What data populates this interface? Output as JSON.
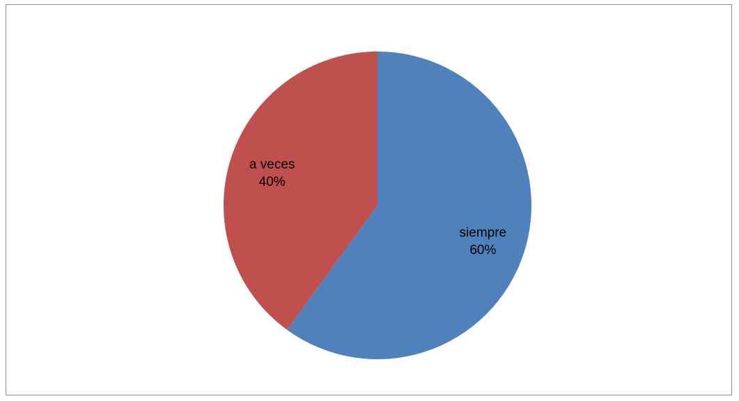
{
  "chart_data": {
    "type": "pie",
    "title": "",
    "slices": [
      {
        "label": "siempre",
        "percent_label": "60%",
        "value": 60,
        "color": "#4F81BD"
      },
      {
        "label": "a veces",
        "percent_label": "40%",
        "value": 40,
        "color": "#C0504D"
      }
    ],
    "legend": "none",
    "start_angle": "12 o'clock",
    "direction": "clockwise"
  }
}
